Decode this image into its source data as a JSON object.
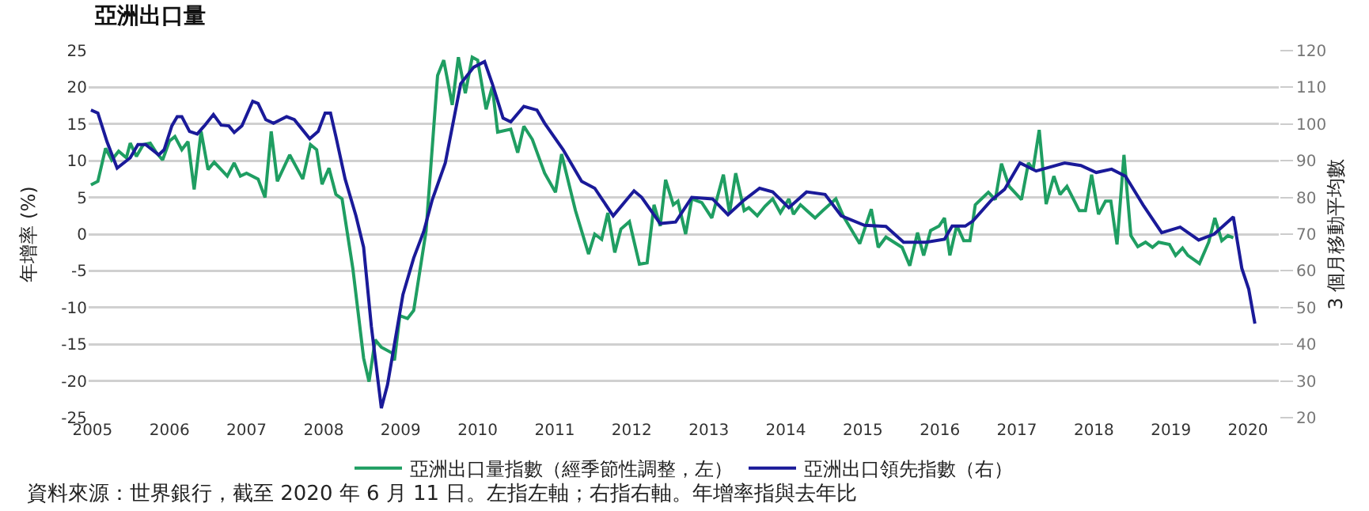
{
  "chart_data": {
    "type": "line",
    "title": "亞洲出口量",
    "ylabel": "年增率 (%)",
    "y2label": "3 個月移動平均數",
    "annotations": [
      "資料來源：世界銀行，截至 2020 年 6 月 11 日。左指左軸；右指右軸。年增率指與去年比"
    ],
    "xlim": [
      2004.95,
      2020.4
    ],
    "xticks": [
      2005,
      2006,
      2007,
      2008,
      2009,
      2010,
      2011,
      2012,
      2013,
      2014,
      2015,
      2016,
      2017,
      2018,
      2019,
      2020
    ],
    "ylim": [
      -25,
      25
    ],
    "yticks": [
      -25,
      -20,
      -15,
      -10,
      -5,
      0,
      5,
      10,
      15,
      20,
      25
    ],
    "y2lim": [
      20,
      120
    ],
    "y2ticks": [
      20,
      30,
      40,
      50,
      60,
      70,
      80,
      90,
      100,
      110,
      120
    ],
    "grid": "y",
    "legend": "bottom",
    "series": [
      {
        "name": "亞洲出口量指數（經季節性調整，左）",
        "color": "#1f9e62",
        "x": [
          2004.98,
          2005.07,
          2005.17,
          2005.25,
          2005.34,
          2005.44,
          2005.49,
          2005.57,
          2005.66,
          2005.75,
          2005.83,
          2005.91,
          2006.0,
          2006.07,
          2006.16,
          2006.24,
          2006.32,
          2006.41,
          2006.5,
          2006.58,
          2006.75,
          2006.84,
          2006.92,
          2007.0,
          2007.15,
          2007.24,
          2007.32,
          2007.4,
          2007.56,
          2007.73,
          2007.83,
          2007.91,
          2007.98,
          2008.07,
          2008.16,
          2008.24,
          2008.38,
          2008.52,
          2008.59,
          2008.67,
          2008.75,
          2008.89,
          2008.92,
          2008.99,
          2009.09,
          2009.17,
          2009.33,
          2009.48,
          2009.56,
          2009.67,
          2009.75,
          2009.84,
          2009.93,
          2010.0,
          2010.11,
          2010.19,
          2010.26,
          2010.43,
          2010.52,
          2010.6,
          2010.71,
          2010.87,
          2011.01,
          2011.09,
          2011.27,
          2011.44,
          2011.52,
          2011.61,
          2011.69,
          2011.78,
          2011.86,
          2011.97,
          2012.1,
          2012.2,
          2012.29,
          2012.37,
          2012.44,
          2012.54,
          2012.6,
          2012.7,
          2012.78,
          2012.91,
          2013.04,
          2013.19,
          2013.27,
          2013.35,
          2013.46,
          2013.52,
          2013.63,
          2013.73,
          2013.83,
          2013.93,
          2014.04,
          2014.1,
          2014.19,
          2014.38,
          2014.48,
          2014.65,
          2014.75,
          2014.96,
          2015.11,
          2015.2,
          2015.3,
          2015.51,
          2015.61,
          2015.71,
          2015.79,
          2015.88,
          2015.99,
          2016.06,
          2016.13,
          2016.22,
          2016.31,
          2016.39,
          2016.46,
          2016.63,
          2016.72,
          2016.8,
          2016.9,
          2017.06,
          2017.15,
          2017.21,
          2017.29,
          2017.38,
          2017.48,
          2017.56,
          2017.65,
          2017.81,
          2017.89,
          2017.97,
          2018.06,
          2018.15,
          2018.22,
          2018.3,
          2018.39,
          2018.48,
          2018.57,
          2018.67,
          2018.76,
          2018.84,
          2018.98,
          2019.06,
          2019.15,
          2019.22,
          2019.37,
          2019.49,
          2019.57,
          2019.66,
          2019.74,
          2019.81
        ],
        "values": [
          6.7,
          7.2,
          11.7,
          10.1,
          11.3,
          10.4,
          12.4,
          10.6,
          12.2,
          12.4,
          11.1,
          10.1,
          12.7,
          13.3,
          11.5,
          12.6,
          6.1,
          14,
          8.8,
          9.8,
          7.9,
          9.7,
          7.9,
          8.3,
          7.5,
          5,
          14,
          7.2,
          10.8,
          7.5,
          12.2,
          11.5,
          6.8,
          9,
          5.4,
          4.8,
          -4.7,
          -16.9,
          -20.1,
          -14.4,
          -15.4,
          -16.2,
          -17.2,
          -11.1,
          -11.5,
          -10.4,
          0.4,
          21.6,
          23.7,
          17.6,
          24.1,
          19.2,
          24.1,
          23.7,
          17,
          20.1,
          13.9,
          14.3,
          11.1,
          14.7,
          12.9,
          8.3,
          5.7,
          10.9,
          3.2,
          -2.7,
          0,
          -0.7,
          2.9,
          -2.5,
          0.7,
          1.7,
          -4.1,
          -3.9,
          4,
          1.1,
          7.4,
          4,
          4.5,
          0,
          4.8,
          4.3,
          2.2,
          8.1,
          2.9,
          8.3,
          3.2,
          3.6,
          2.5,
          3.8,
          4.8,
          2.9,
          4.8,
          2.7,
          4,
          2.2,
          3.2,
          4.8,
          2.4,
          -1.3,
          3.4,
          -1.8,
          -0.4,
          -1.8,
          -4.3,
          0.2,
          -2.9,
          0.5,
          1.1,
          2.2,
          -2.9,
          1.2,
          -0.9,
          -0.9,
          4,
          5.7,
          4.7,
          9.6,
          6.5,
          4.7,
          9.7,
          8.8,
          14.2,
          4.1,
          7.9,
          5.4,
          6.5,
          3.2,
          3.2,
          8.1,
          2.7,
          4.5,
          4.5,
          -1.4,
          10.8,
          -0.2,
          -1.7,
          -1.1,
          -1.8,
          -1.1,
          -1.4,
          -2.9,
          -1.9,
          -2.9,
          -4,
          -1.1,
          2.2,
          -0.9,
          -0.2,
          -0.5
        ]
      },
      {
        "name": "亞洲出口領先指數（右）",
        "color": "#1a1a99",
        "axis": "y2",
        "x": [
          2004.98,
          2005.07,
          2005.19,
          2005.32,
          2005.49,
          2005.59,
          2005.69,
          2005.86,
          2005.93,
          2006.03,
          2006.1,
          2006.16,
          2006.26,
          2006.36,
          2006.46,
          2006.57,
          2006.67,
          2006.77,
          2006.84,
          2006.94,
          2007.08,
          2007.15,
          2007.25,
          2007.35,
          2007.52,
          2007.62,
          2007.82,
          2007.93,
          2008.02,
          2008.09,
          2008.16,
          2008.28,
          2008.42,
          2008.52,
          2008.62,
          2008.75,
          2008.83,
          2009.03,
          2009.17,
          2009.3,
          2009.41,
          2009.58,
          2009.78,
          2009.95,
          2010.09,
          2010.19,
          2010.33,
          2010.43,
          2010.6,
          2010.77,
          2010.87,
          2011.11,
          2011.35,
          2011.52,
          2011.76,
          2012.03,
          2012.13,
          2012.37,
          2012.57,
          2012.78,
          2013.05,
          2013.25,
          2013.46,
          2013.66,
          2013.83,
          2014.04,
          2014.27,
          2014.51,
          2014.72,
          2015.02,
          2015.3,
          2015.53,
          2015.67,
          2015.82,
          2016.06,
          2016.16,
          2016.33,
          2016.43,
          2016.67,
          2016.84,
          2017.04,
          2017.25,
          2017.62,
          2017.83,
          2018.03,
          2018.23,
          2018.41,
          2018.64,
          2018.88,
          2019.12,
          2019.36,
          2019.56,
          2019.81,
          2019.92,
          2020.01,
          2020.09
        ],
        "values": [
          103.8,
          103,
          95.1,
          88,
          90.8,
          94.4,
          94.4,
          91.6,
          93,
          99.5,
          102,
          102,
          98,
          97.3,
          99.7,
          102.6,
          99.7,
          99.5,
          97.7,
          99.5,
          106.2,
          105.6,
          101.2,
          100.2,
          102,
          101.2,
          96,
          98,
          103,
          103,
          96.6,
          85,
          75,
          66.4,
          44.9,
          22.6,
          29,
          53.5,
          63.5,
          70.7,
          79.3,
          89.4,
          111,
          115.5,
          117,
          111,
          101.6,
          100.6,
          104.8,
          103.8,
          100.2,
          93,
          84.4,
          82.5,
          75,
          81.8,
          80,
          72.9,
          73.3,
          80,
          79.6,
          75.3,
          79.3,
          82.5,
          81.5,
          77.2,
          81.5,
          80.8,
          75,
          72.4,
          72.1,
          67.8,
          67.8,
          67.8,
          68.6,
          72.2,
          72.2,
          73.6,
          79.3,
          82.2,
          89.4,
          87.2,
          89.4,
          88.7,
          86.8,
          87.7,
          85.8,
          77.9,
          70.4,
          71.9,
          68.4,
          70,
          74.7,
          60.7,
          55,
          45.6
        ]
      }
    ]
  }
}
